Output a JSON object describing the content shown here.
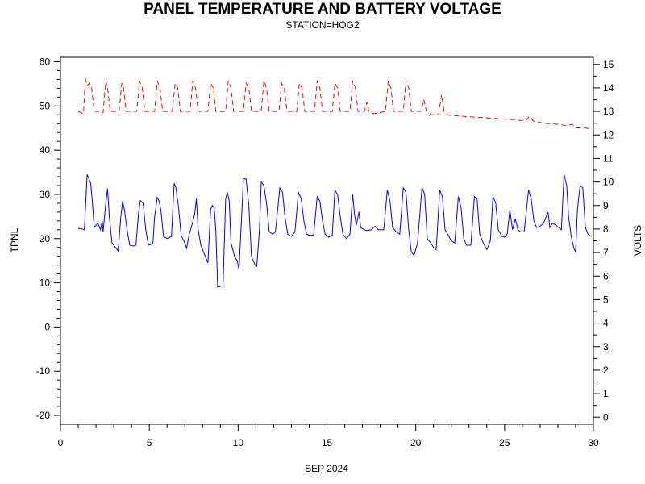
{
  "chart_data": {
    "type": "line",
    "title": "PANEL TEMPERATURE AND BATTERY VOLTAGE",
    "subtitle": "STATION=HOG2",
    "xlabel": "SEP 2024",
    "ylabel_left": "TPNL",
    "ylabel_right": "VOLTS",
    "xlim": [
      0,
      30
    ],
    "ylim_left": [
      -22,
      61
    ],
    "ylim_right": [
      -0.3,
      15.3
    ],
    "x_ticks": [
      0,
      5,
      10,
      15,
      20,
      25,
      30
    ],
    "y_left_ticks": [
      -20,
      -10,
      0,
      10,
      20,
      30,
      40,
      50,
      60
    ],
    "y_right_ticks": [
      0,
      1,
      2,
      3,
      4,
      5,
      6,
      7,
      8,
      9,
      10,
      11,
      12,
      13,
      14,
      15
    ],
    "grid": false,
    "series": [
      {
        "axis": "left",
        "color": "#0000ff",
        "style": "solid",
        "points": [
          [
            1.0,
            22.3
          ],
          [
            1.2,
            22.2
          ],
          [
            1.35,
            22.0
          ],
          [
            1.5,
            34.5
          ],
          [
            1.6,
            33.5
          ],
          [
            1.7,
            32.5
          ],
          [
            1.8,
            28.0
          ],
          [
            1.9,
            22.5
          ],
          [
            2.1,
            23.5
          ],
          [
            2.25,
            22.0
          ],
          [
            2.35,
            24.0
          ],
          [
            2.4,
            21.5
          ],
          [
            2.55,
            28.0
          ],
          [
            2.65,
            31.3
          ],
          [
            2.75,
            25.0
          ],
          [
            2.9,
            19.0
          ],
          [
            3.1,
            18.0
          ],
          [
            3.25,
            17.2
          ],
          [
            3.4,
            25.0
          ],
          [
            3.5,
            28.5
          ],
          [
            3.6,
            26.5
          ],
          [
            3.75,
            22.0
          ],
          [
            3.9,
            18.5
          ],
          [
            4.1,
            18.3
          ],
          [
            4.25,
            18.5
          ],
          [
            4.4,
            26.0
          ],
          [
            4.5,
            28.6
          ],
          [
            4.65,
            28.0
          ],
          [
            4.8,
            22.0
          ],
          [
            4.95,
            18.5
          ],
          [
            5.2,
            18.8
          ],
          [
            5.3,
            25.0
          ],
          [
            5.45,
            29.3
          ],
          [
            5.55,
            28.5
          ],
          [
            5.65,
            26.5
          ],
          [
            5.8,
            20.5
          ],
          [
            6.0,
            20.0
          ],
          [
            6.25,
            20.5
          ],
          [
            6.4,
            32.5
          ],
          [
            6.5,
            31.5
          ],
          [
            6.65,
            27.0
          ],
          [
            6.8,
            20.5
          ],
          [
            6.95,
            19.5
          ],
          [
            7.1,
            17.8
          ],
          [
            7.25,
            21.0
          ],
          [
            7.4,
            23.0
          ],
          [
            7.55,
            25.5
          ],
          [
            7.65,
            29.0
          ],
          [
            7.75,
            22.0
          ],
          [
            7.9,
            18.5
          ],
          [
            8.1,
            16.5
          ],
          [
            8.3,
            14.5
          ],
          [
            8.45,
            26.5
          ],
          [
            8.55,
            27.5
          ],
          [
            8.65,
            27.0
          ],
          [
            8.75,
            21.5
          ],
          [
            8.85,
            9.0
          ],
          [
            9.0,
            9.2
          ],
          [
            9.15,
            9.3
          ],
          [
            9.3,
            29.0
          ],
          [
            9.4,
            30.5
          ],
          [
            9.5,
            28.5
          ],
          [
            9.6,
            19.0
          ],
          [
            9.8,
            16.0
          ],
          [
            9.95,
            15.0
          ],
          [
            10.05,
            13.0
          ],
          [
            10.2,
            25.0
          ],
          [
            10.3,
            33.5
          ],
          [
            10.45,
            33.5
          ],
          [
            10.6,
            27.5
          ],
          [
            10.75,
            16.0
          ],
          [
            10.95,
            14.0
          ],
          [
            11.05,
            13.7
          ],
          [
            11.2,
            22.0
          ],
          [
            11.3,
            32.8
          ],
          [
            11.45,
            32.0
          ],
          [
            11.6,
            28.0
          ],
          [
            11.75,
            21.5
          ],
          [
            11.95,
            21.0
          ],
          [
            12.1,
            21.5
          ],
          [
            12.35,
            31.5
          ],
          [
            12.5,
            30.5
          ],
          [
            12.65,
            24.5
          ],
          [
            12.8,
            21.0
          ],
          [
            13.0,
            20.5
          ],
          [
            13.2,
            21.5
          ],
          [
            13.4,
            30.5
          ],
          [
            13.55,
            29.0
          ],
          [
            13.7,
            24.0
          ],
          [
            13.85,
            21.0
          ],
          [
            14.05,
            20.7
          ],
          [
            14.25,
            20.8
          ],
          [
            14.45,
            29.5
          ],
          [
            14.6,
            28.5
          ],
          [
            14.75,
            24.0
          ],
          [
            14.9,
            21.0
          ],
          [
            15.1,
            20.3
          ],
          [
            15.3,
            20.8
          ],
          [
            15.45,
            31.0
          ],
          [
            15.6,
            30.0
          ],
          [
            15.75,
            25.0
          ],
          [
            15.9,
            21.0
          ],
          [
            16.1,
            20.0
          ],
          [
            16.3,
            21.0
          ],
          [
            16.45,
            30.0
          ],
          [
            16.55,
            25.5
          ],
          [
            16.65,
            23.0
          ],
          [
            16.8,
            26.0
          ],
          [
            16.9,
            22.5
          ],
          [
            17.1,
            22.0
          ],
          [
            17.25,
            21.8
          ],
          [
            17.5,
            22.0
          ],
          [
            17.7,
            22.8
          ],
          [
            17.9,
            22.0
          ],
          [
            18.2,
            22.0
          ],
          [
            18.4,
            31.0
          ],
          [
            18.55,
            28.5
          ],
          [
            18.7,
            22.5
          ],
          [
            18.9,
            21.5
          ],
          [
            19.1,
            21.0
          ],
          [
            19.3,
            31.5
          ],
          [
            19.45,
            30.5
          ],
          [
            19.6,
            22.0
          ],
          [
            19.75,
            17.0
          ],
          [
            19.9,
            16.2
          ],
          [
            20.1,
            19.0
          ],
          [
            20.35,
            31.5
          ],
          [
            20.5,
            30.0
          ],
          [
            20.65,
            20.0
          ],
          [
            20.85,
            19.0
          ],
          [
            21.0,
            18.0
          ],
          [
            21.15,
            17.5
          ],
          [
            21.35,
            31.0
          ],
          [
            21.5,
            29.5
          ],
          [
            21.65,
            22.0
          ],
          [
            21.8,
            21.0
          ],
          [
            22.0,
            19.5
          ],
          [
            22.2,
            19.0
          ],
          [
            22.4,
            29.5
          ],
          [
            22.55,
            27.0
          ],
          [
            22.7,
            20.0
          ],
          [
            22.85,
            18.5
          ],
          [
            23.1,
            18.5
          ],
          [
            23.3,
            29.5
          ],
          [
            23.45,
            29.0
          ],
          [
            23.6,
            21.0
          ],
          [
            23.8,
            19.0
          ],
          [
            24.0,
            17.5
          ],
          [
            24.2,
            19.5
          ],
          [
            24.35,
            29.5
          ],
          [
            24.5,
            28.0
          ],
          [
            24.65,
            22.0
          ],
          [
            24.85,
            20.5
          ],
          [
            25.0,
            20.3
          ],
          [
            25.15,
            21.0
          ],
          [
            25.3,
            26.5
          ],
          [
            25.45,
            22.0
          ],
          [
            25.6,
            24.5
          ],
          [
            25.75,
            22.0
          ],
          [
            25.9,
            21.5
          ],
          [
            26.1,
            21.5
          ],
          [
            26.35,
            31.0
          ],
          [
            26.5,
            29.0
          ],
          [
            26.65,
            24.0
          ],
          [
            26.8,
            22.5
          ],
          [
            27.0,
            22.8
          ],
          [
            27.2,
            23.5
          ],
          [
            27.45,
            26.0
          ],
          [
            27.55,
            22.5
          ],
          [
            27.7,
            23.5
          ],
          [
            27.9,
            23.0
          ],
          [
            28.05,
            22.5
          ],
          [
            28.2,
            22.0
          ],
          [
            28.35,
            34.5
          ],
          [
            28.5,
            32.0
          ],
          [
            28.6,
            25.0
          ],
          [
            28.75,
            20.5
          ],
          [
            28.9,
            17.8
          ],
          [
            29.0,
            17.0
          ],
          [
            29.1,
            26.5
          ],
          [
            29.25,
            32.0
          ],
          [
            29.4,
            31.5
          ],
          [
            29.55,
            22.5
          ],
          [
            29.7,
            21.0
          ],
          [
            29.85,
            20.5
          ]
        ]
      },
      {
        "axis": "right",
        "color": "#ff0000",
        "style": "dashed",
        "points": [
          [
            1.0,
            13.0
          ],
          [
            1.3,
            12.9
          ],
          [
            1.4,
            14.4
          ],
          [
            1.5,
            14.1
          ],
          [
            1.65,
            14.2
          ],
          [
            1.75,
            14.0
          ],
          [
            1.9,
            13.0
          ],
          [
            2.2,
            13.0
          ],
          [
            2.4,
            12.95
          ],
          [
            2.55,
            14.3
          ],
          [
            2.65,
            14.0
          ],
          [
            2.8,
            13.0
          ],
          [
            3.3,
            13.0
          ],
          [
            3.45,
            14.2
          ],
          [
            3.55,
            14.0
          ],
          [
            3.7,
            13.0
          ],
          [
            4.3,
            13.0
          ],
          [
            4.45,
            14.3
          ],
          [
            4.6,
            14.0
          ],
          [
            4.75,
            13.0
          ],
          [
            5.3,
            13.0
          ],
          [
            5.45,
            14.3
          ],
          [
            5.6,
            14.0
          ],
          [
            5.75,
            13.0
          ],
          [
            6.3,
            13.0
          ],
          [
            6.45,
            14.2
          ],
          [
            6.6,
            14.0
          ],
          [
            6.75,
            13.0
          ],
          [
            7.3,
            13.0
          ],
          [
            7.45,
            14.3
          ],
          [
            7.6,
            14.0
          ],
          [
            7.75,
            13.0
          ],
          [
            8.3,
            13.0
          ],
          [
            8.45,
            14.2
          ],
          [
            8.6,
            14.0
          ],
          [
            8.75,
            13.0
          ],
          [
            9.3,
            13.0
          ],
          [
            9.45,
            14.3
          ],
          [
            9.6,
            14.0
          ],
          [
            9.75,
            13.0
          ],
          [
            10.3,
            13.0
          ],
          [
            10.45,
            14.2
          ],
          [
            10.6,
            14.0
          ],
          [
            10.75,
            13.0
          ],
          [
            11.3,
            13.0
          ],
          [
            11.45,
            14.3
          ],
          [
            11.6,
            14.0
          ],
          [
            11.75,
            13.0
          ],
          [
            12.3,
            13.0
          ],
          [
            12.45,
            14.2
          ],
          [
            12.6,
            14.0
          ],
          [
            12.75,
            13.0
          ],
          [
            13.3,
            13.0
          ],
          [
            13.45,
            14.2
          ],
          [
            13.6,
            14.0
          ],
          [
            13.75,
            13.0
          ],
          [
            14.3,
            13.0
          ],
          [
            14.45,
            14.3
          ],
          [
            14.6,
            14.0
          ],
          [
            14.75,
            13.0
          ],
          [
            15.3,
            13.0
          ],
          [
            15.45,
            14.2
          ],
          [
            15.6,
            14.0
          ],
          [
            15.75,
            13.0
          ],
          [
            16.3,
            13.0
          ],
          [
            16.45,
            14.3
          ],
          [
            16.6,
            14.0
          ],
          [
            16.75,
            13.0
          ],
          [
            17.1,
            13.0
          ],
          [
            17.25,
            13.4
          ],
          [
            17.35,
            13.0
          ],
          [
            17.6,
            12.9
          ],
          [
            18.3,
            13.0
          ],
          [
            18.45,
            14.3
          ],
          [
            18.6,
            14.0
          ],
          [
            18.75,
            13.0
          ],
          [
            19.3,
            13.0
          ],
          [
            19.45,
            14.3
          ],
          [
            19.6,
            14.0
          ],
          [
            19.75,
            13.0
          ],
          [
            20.3,
            13.0
          ],
          [
            20.45,
            13.5
          ],
          [
            20.6,
            13.0
          ],
          [
            20.9,
            12.85
          ],
          [
            21.3,
            12.9
          ],
          [
            21.45,
            13.7
          ],
          [
            21.6,
            13.0
          ],
          [
            21.8,
            12.85
          ],
          [
            22.5,
            12.8
          ],
          [
            23.5,
            12.75
          ],
          [
            24.5,
            12.7
          ],
          [
            25.5,
            12.65
          ],
          [
            26.2,
            12.6
          ],
          [
            26.4,
            12.8
          ],
          [
            26.6,
            12.6
          ],
          [
            27.2,
            12.5
          ],
          [
            28.0,
            12.45
          ],
          [
            28.5,
            12.4
          ],
          [
            28.8,
            12.45
          ],
          [
            29.0,
            12.3
          ],
          [
            29.5,
            12.3
          ],
          [
            29.9,
            12.25
          ]
        ]
      }
    ]
  }
}
